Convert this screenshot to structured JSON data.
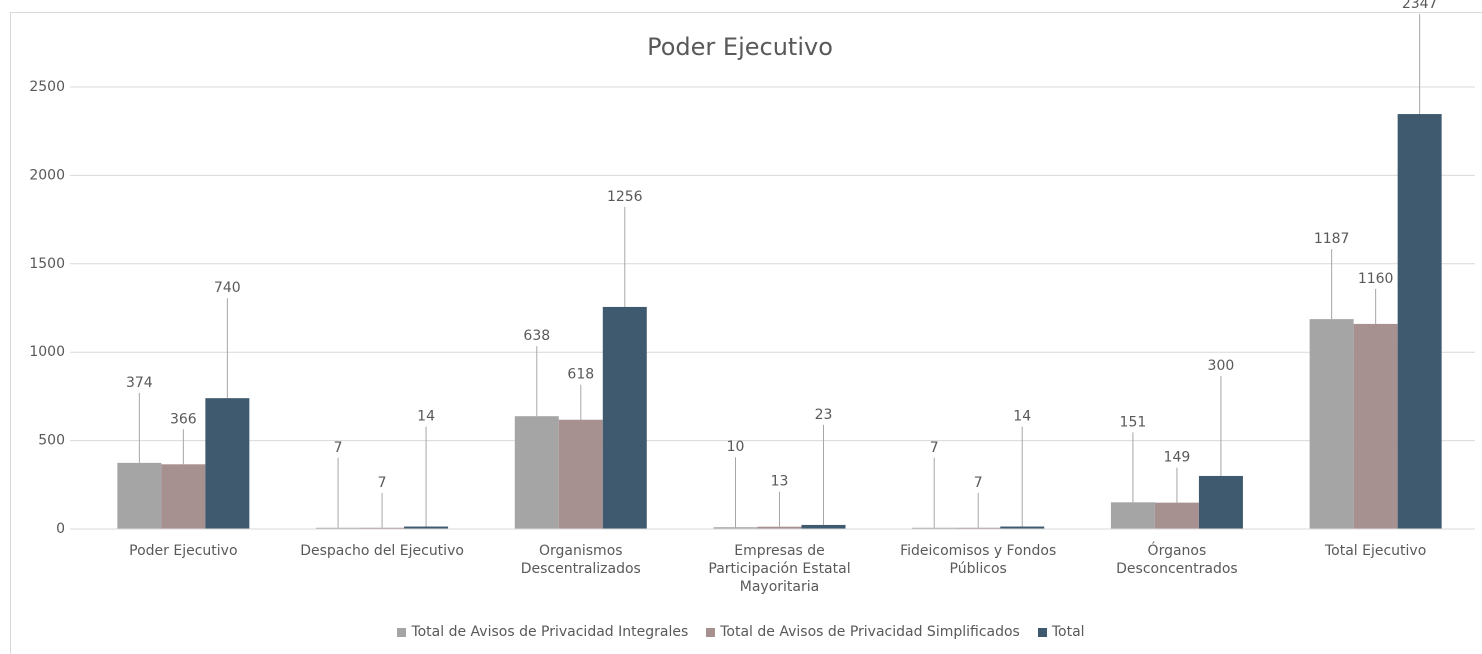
{
  "chart_data": {
    "type": "bar",
    "title": "Poder Ejecutivo",
    "categories": [
      "Poder Ejecutivo",
      "Despacho del Ejecutivo",
      "Organismos Descentralizados",
      "Empresas de Participación Estatal Mayoritaria",
      "Fideicomisos y Fondos Públicos",
      "Órganos Desconcentrados",
      "Total Ejecutivo"
    ],
    "series": [
      {
        "name": "Total de Avisos de Privacidad Integrales",
        "color": "#a5a5a5",
        "values": [
          374,
          7,
          638,
          10,
          7,
          151,
          1187
        ]
      },
      {
        "name": "Total de Avisos de Privacidad Simplificados",
        "color": "#a69090",
        "values": [
          366,
          7,
          618,
          13,
          7,
          149,
          1160
        ]
      },
      {
        "name": "Total",
        "color": "#3f5a6e",
        "values": [
          740,
          14,
          1256,
          23,
          14,
          300,
          2347
        ]
      }
    ],
    "ylim": [
      0,
      2500
    ],
    "yticks": [
      0,
      500,
      1000,
      1500,
      2000,
      2500
    ],
    "grid": true,
    "legend": "bottom"
  }
}
